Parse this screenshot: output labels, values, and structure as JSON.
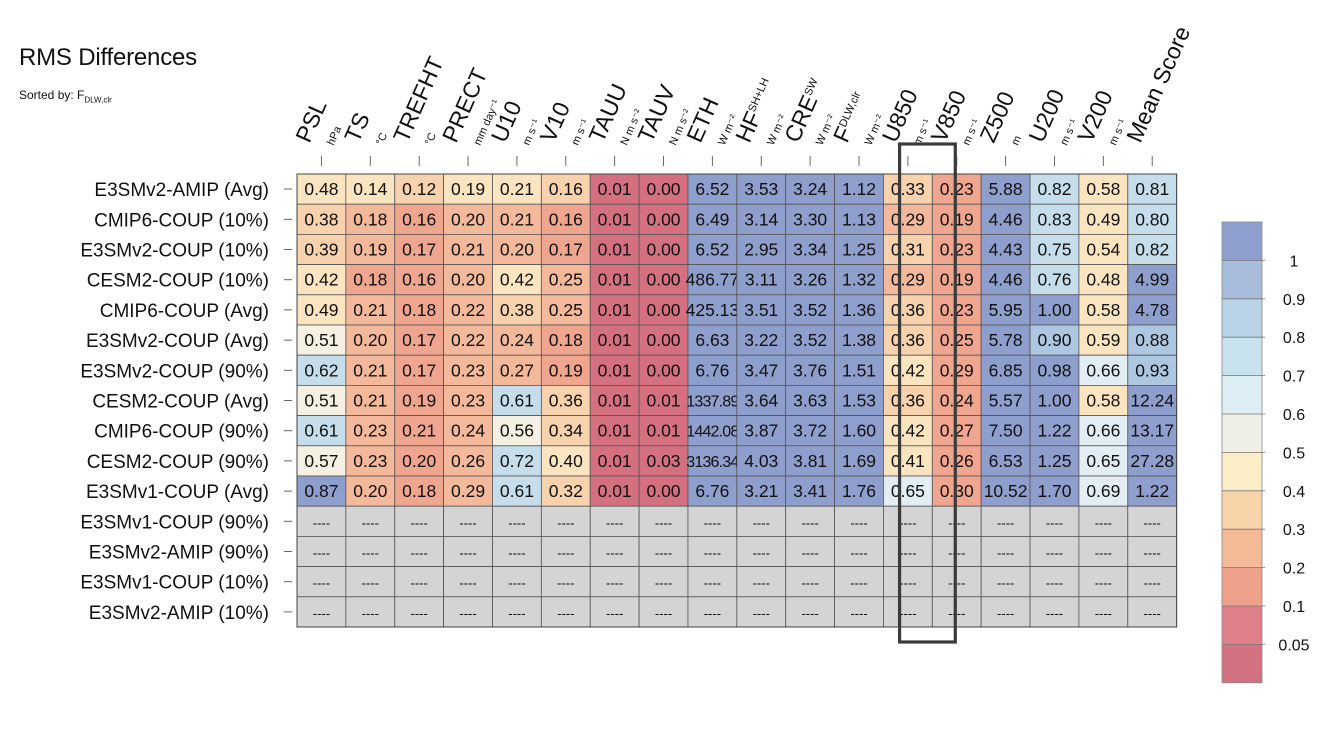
{
  "chart_data": {
    "type": "heatmap",
    "title": "RMS Differences",
    "sorted_by_label": "Sorted by: F",
    "sorted_by_sub": "DLW,clr",
    "columns": [
      {
        "name": "PSL",
        "sup": "",
        "unit": "hPa"
      },
      {
        "name": "TS",
        "sup": "",
        "unit": "°C"
      },
      {
        "name": "TREFHT",
        "sup": "",
        "unit": "°C"
      },
      {
        "name": "PRECT",
        "sup": "",
        "unit": "mm day⁻¹"
      },
      {
        "name": "U10",
        "sup": "",
        "unit": "m s⁻¹"
      },
      {
        "name": "V10",
        "sup": "",
        "unit": "m s⁻¹"
      },
      {
        "name": "TAUU",
        "sup": "",
        "unit": "N m s⁻²"
      },
      {
        "name": "TAUV",
        "sup": "",
        "unit": "N m s⁻²"
      },
      {
        "name": "ETH",
        "sup": "",
        "unit": "W m⁻²"
      },
      {
        "name": "HF",
        "sup": "SH+LH",
        "unit": "W m⁻²"
      },
      {
        "name": "CRE",
        "sup": "SW",
        "unit": "W m⁻²"
      },
      {
        "name": "F",
        "sup": "DLW,clr",
        "unit": "W m⁻²"
      },
      {
        "name": "U850",
        "sup": "",
        "unit": "m s⁻¹"
      },
      {
        "name": "V850",
        "sup": "",
        "unit": "m s⁻¹"
      },
      {
        "name": "Z500",
        "sup": "",
        "unit": "m"
      },
      {
        "name": "U200",
        "sup": "",
        "unit": "m s⁻¹"
      },
      {
        "name": "V200",
        "sup": "",
        "unit": "m s⁻¹"
      },
      {
        "name": "Mean Score",
        "sup": "",
        "unit": ""
      }
    ],
    "rows": [
      {
        "label": "E3SMv2-AMIP (Avg)",
        "values": [
          "0.48",
          "0.14",
          "0.12",
          "0.19",
          "0.21",
          "0.16",
          "0.01",
          "0.00",
          "6.52",
          "3.53",
          "3.24",
          "1.12",
          "0.33",
          "0.23",
          "5.88",
          "0.82",
          "0.58",
          "0.81"
        ]
      },
      {
        "label": "CMIP6-COUP (10%)",
        "values": [
          "0.38",
          "0.18",
          "0.16",
          "0.20",
          "0.21",
          "0.16",
          "0.01",
          "0.00",
          "6.49",
          "3.14",
          "3.30",
          "1.13",
          "0.29",
          "0.19",
          "4.46",
          "0.83",
          "0.49",
          "0.80"
        ]
      },
      {
        "label": "E3SMv2-COUP (10%)",
        "values": [
          "0.39",
          "0.19",
          "0.17",
          "0.21",
          "0.20",
          "0.17",
          "0.01",
          "0.00",
          "6.52",
          "2.95",
          "3.34",
          "1.25",
          "0.31",
          "0.23",
          "4.43",
          "0.75",
          "0.54",
          "0.82"
        ]
      },
      {
        "label": "CESM2-COUP (10%)",
        "values": [
          "0.42",
          "0.18",
          "0.16",
          "0.20",
          "0.42",
          "0.25",
          "0.01",
          "0.00",
          "486.77",
          "3.11",
          "3.26",
          "1.32",
          "0.29",
          "0.19",
          "4.46",
          "0.76",
          "0.48",
          "4.99"
        ]
      },
      {
        "label": "CMIP6-COUP (Avg)",
        "values": [
          "0.49",
          "0.21",
          "0.18",
          "0.22",
          "0.38",
          "0.25",
          "0.01",
          "0.00",
          "425.13",
          "3.51",
          "3.52",
          "1.36",
          "0.36",
          "0.23",
          "5.95",
          "1.00",
          "0.58",
          "4.78"
        ]
      },
      {
        "label": "E3SMv2-COUP (Avg)",
        "values": [
          "0.51",
          "0.20",
          "0.17",
          "0.22",
          "0.24",
          "0.18",
          "0.01",
          "0.00",
          "6.63",
          "3.22",
          "3.52",
          "1.38",
          "0.36",
          "0.25",
          "5.78",
          "0.90",
          "0.59",
          "0.88"
        ]
      },
      {
        "label": "E3SMv2-COUP (90%)",
        "values": [
          "0.62",
          "0.21",
          "0.17",
          "0.23",
          "0.27",
          "0.19",
          "0.01",
          "0.00",
          "6.76",
          "3.47",
          "3.76",
          "1.51",
          "0.42",
          "0.29",
          "6.85",
          "0.98",
          "0.66",
          "0.93"
        ]
      },
      {
        "label": "CESM2-COUP (Avg)",
        "values": [
          "0.51",
          "0.21",
          "0.19",
          "0.23",
          "0.61",
          "0.36",
          "0.01",
          "0.01",
          "1337.89",
          "3.64",
          "3.63",
          "1.53",
          "0.36",
          "0.24",
          "5.57",
          "1.00",
          "0.58",
          "12.24"
        ]
      },
      {
        "label": "CMIP6-COUP (90%)",
        "values": [
          "0.61",
          "0.23",
          "0.21",
          "0.24",
          "0.56",
          "0.34",
          "0.01",
          "0.01",
          "1442.08",
          "3.87",
          "3.72",
          "1.60",
          "0.42",
          "0.27",
          "7.50",
          "1.22",
          "0.66",
          "13.17"
        ]
      },
      {
        "label": "CESM2-COUP (90%)",
        "values": [
          "0.57",
          "0.23",
          "0.20",
          "0.26",
          "0.72",
          "0.40",
          "0.01",
          "0.03",
          "3136.34",
          "4.03",
          "3.81",
          "1.69",
          "0.41",
          "0.26",
          "6.53",
          "1.25",
          "0.65",
          "27.28"
        ]
      },
      {
        "label": "E3SMv1-COUP (Avg)",
        "values": [
          "0.87",
          "0.20",
          "0.18",
          "0.29",
          "0.61",
          "0.32",
          "0.01",
          "0.00",
          "6.76",
          "3.21",
          "3.41",
          "1.76",
          "0.65",
          "0.30",
          "10.52",
          "1.70",
          "0.69",
          "1.22"
        ]
      },
      {
        "label": "E3SMv1-COUP (90%)",
        "values": [
          "----",
          "----",
          "----",
          "----",
          "----",
          "----",
          "----",
          "----",
          "----",
          "----",
          "----",
          "----",
          "----",
          "----",
          "----",
          "----",
          "----",
          "----"
        ]
      },
      {
        "label": "E3SMv2-AMIP (90%)",
        "values": [
          "----",
          "----",
          "----",
          "----",
          "----",
          "----",
          "----",
          "----",
          "----",
          "----",
          "----",
          "----",
          "----",
          "----",
          "----",
          "----",
          "----",
          "----"
        ]
      },
      {
        "label": "E3SMv1-COUP (10%)",
        "values": [
          "----",
          "----",
          "----",
          "----",
          "----",
          "----",
          "----",
          "----",
          "----",
          "----",
          "----",
          "----",
          "----",
          "----",
          "----",
          "----",
          "----",
          "----"
        ]
      },
      {
        "label": "E3SMv2-AMIP (10%)",
        "values": [
          "----",
          "----",
          "----",
          "----",
          "----",
          "----",
          "----",
          "----",
          "----",
          "----",
          "----",
          "----",
          "----",
          "----",
          "----",
          "----",
          "----",
          "----"
        ]
      }
    ],
    "color_classes": [
      [
        "6",
        "6",
        "5",
        "6",
        "6",
        "5",
        "0",
        "0",
        "11",
        "11",
        "11",
        "11",
        "5",
        "3",
        "11",
        "9",
        "6",
        "9"
      ],
      [
        "5",
        "4",
        "3",
        "4",
        "4",
        "3",
        "0",
        "0",
        "11",
        "11",
        "11",
        "11",
        "4",
        "3",
        "11",
        "9",
        "6",
        "9"
      ],
      [
        "5",
        "4",
        "3",
        "4",
        "4",
        "3",
        "0",
        "0",
        "11",
        "11",
        "11",
        "11",
        "5",
        "3",
        "11",
        "9",
        "6",
        "9"
      ],
      [
        "6",
        "3",
        "3",
        "4",
        "6",
        "4",
        "0",
        "0",
        "11",
        "11",
        "11",
        "11",
        "4",
        "3",
        "11",
        "9",
        "6",
        "11"
      ],
      [
        "6",
        "4",
        "3",
        "4",
        "5",
        "4",
        "0",
        "0",
        "11",
        "11",
        "11",
        "11",
        "5",
        "3",
        "11",
        "11",
        "6",
        "11"
      ],
      [
        "7",
        "4",
        "3",
        "4",
        "4",
        "3",
        "0",
        "0",
        "11",
        "11",
        "11",
        "11",
        "5",
        "3",
        "11",
        "10",
        "6",
        "10"
      ],
      [
        "9",
        "4",
        "3",
        "4",
        "4",
        "3",
        "0",
        "0",
        "11",
        "11",
        "11",
        "11",
        "6",
        "3",
        "11",
        "11",
        "8",
        "10"
      ],
      [
        "7",
        "4",
        "3",
        "4",
        "9",
        "5",
        "0",
        "0",
        "11",
        "11",
        "11",
        "11",
        "5",
        "3",
        "11",
        "11",
        "6",
        "11"
      ],
      [
        "9",
        "4",
        "3",
        "4",
        "7",
        "5",
        "0",
        "0",
        "11",
        "11",
        "11",
        "11",
        "6",
        "3",
        "11",
        "11",
        "8",
        "11"
      ],
      [
        "7",
        "4",
        "3",
        "4",
        "9",
        "6",
        "0",
        "0",
        "11",
        "11",
        "11",
        "11",
        "6",
        "3",
        "11",
        "11",
        "8",
        "11"
      ],
      [
        "11",
        "4",
        "3",
        "4",
        "9",
        "5",
        "0",
        "0",
        "11",
        "11",
        "11",
        "11",
        "8",
        "3",
        "11",
        "11",
        "8",
        "11"
      ],
      [
        "na",
        "na",
        "na",
        "na",
        "na",
        "na",
        "na",
        "na",
        "na",
        "na",
        "na",
        "na",
        "na",
        "na",
        "na",
        "na",
        "na",
        "na"
      ],
      [
        "na",
        "na",
        "na",
        "na",
        "na",
        "na",
        "na",
        "na",
        "na",
        "na",
        "na",
        "na",
        "na",
        "na",
        "na",
        "na",
        "na",
        "na"
      ],
      [
        "na",
        "na",
        "na",
        "na",
        "na",
        "na",
        "na",
        "na",
        "na",
        "na",
        "na",
        "na",
        "na",
        "na",
        "na",
        "na",
        "na",
        "na"
      ],
      [
        "na",
        "na",
        "na",
        "na",
        "na",
        "na",
        "na",
        "na",
        "na",
        "na",
        "na",
        "na",
        "na",
        "na",
        "na",
        "na",
        "na",
        "na"
      ]
    ],
    "colorbar_labels": [
      "1",
      "0.9",
      "0.8",
      "0.7",
      "0.6",
      "0.5",
      "0.4",
      "0.3",
      "0.2",
      "0.1",
      "0.05"
    ],
    "colorbar_colors": [
      "#8f9fcd",
      "#a7bddb",
      "#b7d3e5",
      "#c9e3ee",
      "#dceef4",
      "#eef0e6",
      "#fbedc5",
      "#f9d4ab",
      "#f5bb98",
      "#eea28b",
      "#e0808b",
      "#d2717f"
    ],
    "cell_palette": {
      "0": "#d4707f",
      "1": "#e0808b",
      "2": "#eea28b",
      "3": "#f0a58f",
      "4": "#f4b99b",
      "5": "#f8d2ad",
      "6": "#fbe4c0",
      "7": "#f4f0e2",
      "8": "#e3eef4",
      "9": "#c6deeb",
      "10": "#aec7e1",
      "11": "#8f9fcd",
      "na": "#d4d4d4"
    },
    "highlight_columns": [
      "U850",
      "V850"
    ]
  }
}
